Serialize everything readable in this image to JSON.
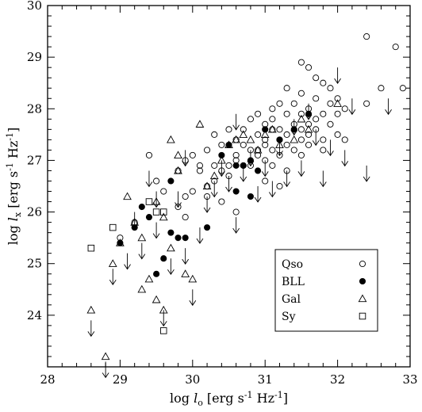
{
  "chart_data": {
    "type": "scatter",
    "xlabel": {
      "prefix": "log ",
      "var": "l",
      "sub": "o",
      "units": " [erg s",
      "exp": "-1",
      "units2": " Hz",
      "exp2": "-1",
      "close": "]"
    },
    "ylabel": {
      "prefix": "log ",
      "var": "l",
      "sub": "x",
      "units": " [erg s",
      "exp": "-1",
      "units2": " Hz",
      "exp2": "-1",
      "close": "]"
    },
    "xlim": [
      28,
      33
    ],
    "ylim": [
      23,
      30
    ],
    "xticks": [
      "28",
      "29",
      "30",
      "31",
      "32",
      "33"
    ],
    "yticks": [
      "24",
      "25",
      "26",
      "27",
      "28",
      "29",
      "30"
    ],
    "grid": false,
    "legend": {
      "placement": "bottom-right",
      "entries": [
        {
          "label": "Qso",
          "marker": "open-circle"
        },
        {
          "label": "BLL",
          "marker": "filled-circle"
        },
        {
          "label": "Gal",
          "marker": "open-triangle"
        },
        {
          "label": "Sy",
          "marker": "open-square"
        }
      ]
    },
    "series": [
      {
        "name": "Qso",
        "marker": "open-circle",
        "points": [
          [
            29.0,
            25.5
          ],
          [
            29.2,
            25.8
          ],
          [
            29.4,
            27.1
          ],
          [
            29.5,
            26.6
          ],
          [
            29.6,
            26.4
          ],
          [
            29.8,
            26.1
          ],
          [
            29.9,
            26.3
          ],
          [
            29.9,
            25.9
          ],
          [
            30.0,
            26.4
          ],
          [
            30.1,
            26.8
          ],
          [
            30.1,
            26.9
          ],
          [
            30.2,
            26.5
          ],
          [
            30.2,
            27.2
          ],
          [
            30.3,
            27.5
          ],
          [
            30.3,
            26.9
          ],
          [
            30.4,
            27.3
          ],
          [
            30.4,
            26.8
          ],
          [
            30.5,
            26.9
          ],
          [
            30.5,
            27.6
          ],
          [
            30.6,
            27.1
          ],
          [
            30.6,
            27.4
          ],
          [
            30.6,
            27.0
          ],
          [
            30.6,
            26.0
          ],
          [
            30.7,
            27.3
          ],
          [
            30.7,
            26.9
          ],
          [
            30.7,
            27.6
          ],
          [
            30.8,
            27.2
          ],
          [
            30.8,
            27.8
          ],
          [
            30.8,
            26.9
          ],
          [
            30.9,
            27.5
          ],
          [
            30.9,
            27.1
          ],
          [
            30.9,
            27.9
          ],
          [
            31.0,
            27.4
          ],
          [
            31.0,
            27.7
          ],
          [
            31.0,
            27.0
          ],
          [
            31.0,
            27.3
          ],
          [
            31.1,
            27.6
          ],
          [
            31.1,
            27.2
          ],
          [
            31.1,
            28.0
          ],
          [
            31.1,
            27.8
          ],
          [
            31.2,
            27.4
          ],
          [
            31.2,
            27.1
          ],
          [
            31.2,
            27.6
          ],
          [
            31.3,
            27.5
          ],
          [
            31.3,
            27.9
          ],
          [
            31.3,
            27.3
          ],
          [
            31.4,
            27.7
          ],
          [
            31.4,
            28.1
          ],
          [
            31.4,
            27.2
          ],
          [
            31.5,
            27.6
          ],
          [
            31.5,
            27.4
          ],
          [
            31.5,
            27.9
          ],
          [
            31.5,
            28.3
          ],
          [
            31.6,
            27.7
          ],
          [
            31.6,
            27.5
          ],
          [
            31.6,
            28.0
          ],
          [
            31.6,
            27.3
          ],
          [
            31.7,
            27.8
          ],
          [
            31.7,
            28.2
          ],
          [
            31.7,
            27.6
          ],
          [
            31.8,
            27.9
          ],
          [
            31.8,
            28.5
          ],
          [
            31.8,
            27.4
          ],
          [
            31.9,
            28.1
          ],
          [
            31.9,
            27.7
          ],
          [
            31.9,
            28.4
          ],
          [
            32.0,
            27.9
          ],
          [
            32.0,
            28.2
          ],
          [
            32.0,
            27.5
          ],
          [
            32.1,
            28.0
          ],
          [
            31.5,
            28.9
          ],
          [
            31.6,
            28.8
          ],
          [
            31.7,
            28.6
          ],
          [
            32.4,
            29.4
          ],
          [
            32.8,
            29.2
          ],
          [
            32.6,
            28.4
          ],
          [
            32.4,
            28.1
          ],
          [
            31.3,
            28.4
          ],
          [
            31.2,
            28.1
          ],
          [
            30.9,
            27.2
          ],
          [
            30.5,
            26.7
          ],
          [
            30.3,
            26.6
          ],
          [
            29.8,
            26.8
          ],
          [
            29.9,
            27.0
          ],
          [
            30.0,
            27.1
          ],
          [
            31.1,
            26.9
          ],
          [
            31.3,
            26.8
          ],
          [
            31.5,
            27.1
          ],
          [
            31.8,
            27.2
          ],
          [
            32.1,
            27.4
          ],
          [
            30.2,
            26.3
          ],
          [
            30.4,
            26.2
          ],
          [
            31.0,
            26.6
          ],
          [
            31.2,
            26.5
          ],
          [
            32.9,
            28.4
          ]
        ]
      },
      {
        "name": "BLL",
        "marker": "filled-circle",
        "points": [
          [
            29.0,
            25.4
          ],
          [
            29.2,
            25.7
          ],
          [
            29.3,
            26.1
          ],
          [
            29.4,
            25.9
          ],
          [
            29.5,
            24.8
          ],
          [
            29.6,
            25.1
          ],
          [
            29.7,
            25.6
          ],
          [
            29.7,
            26.6
          ],
          [
            29.8,
            25.5
          ],
          [
            29.9,
            25.5
          ],
          [
            30.2,
            25.7
          ],
          [
            30.4,
            27.1
          ],
          [
            30.5,
            27.3
          ],
          [
            30.6,
            26.4
          ],
          [
            30.6,
            26.9
          ],
          [
            30.8,
            26.3
          ],
          [
            30.8,
            27.0
          ],
          [
            30.9,
            26.8
          ],
          [
            31.0,
            27.6
          ],
          [
            31.2,
            27.4
          ],
          [
            31.4,
            27.6
          ],
          [
            31.6,
            27.9
          ],
          [
            30.7,
            26.9
          ]
        ]
      },
      {
        "name": "Gal",
        "marker": "open-triangle",
        "points": [
          [
            28.6,
            24.1
          ],
          [
            28.8,
            23.2
          ],
          [
            28.9,
            25.0
          ],
          [
            29.0,
            25.4
          ],
          [
            29.1,
            26.3
          ],
          [
            29.2,
            25.8
          ],
          [
            29.3,
            24.5
          ],
          [
            29.4,
            24.7
          ],
          [
            29.5,
            24.3
          ],
          [
            29.5,
            26.2
          ],
          [
            29.6,
            24.1
          ],
          [
            29.7,
            27.4
          ],
          [
            29.8,
            26.8
          ],
          [
            29.8,
            27.1
          ],
          [
            29.9,
            24.8
          ],
          [
            30.0,
            24.7
          ],
          [
            30.1,
            27.7
          ],
          [
            30.2,
            26.5
          ],
          [
            30.3,
            26.7
          ],
          [
            30.4,
            27.0
          ],
          [
            30.5,
            27.3
          ],
          [
            30.6,
            27.4
          ],
          [
            30.7,
            27.5
          ],
          [
            30.8,
            27.4
          ],
          [
            30.9,
            27.2
          ],
          [
            31.0,
            27.5
          ],
          [
            31.1,
            27.6
          ],
          [
            31.2,
            27.3
          ],
          [
            31.4,
            27.4
          ],
          [
            31.5,
            27.8
          ],
          [
            31.6,
            27.6
          ],
          [
            32.0,
            28.1
          ],
          [
            29.7,
            25.3
          ],
          [
            29.3,
            25.5
          ],
          [
            29.6,
            25.9
          ]
        ]
      },
      {
        "name": "Sy",
        "marker": "open-square",
        "points": [
          [
            28.6,
            25.3
          ],
          [
            28.9,
            25.7
          ],
          [
            29.4,
            26.2
          ],
          [
            29.5,
            26.0
          ],
          [
            29.6,
            23.7
          ],
          [
            29.6,
            26.0
          ]
        ]
      }
    ],
    "upper_limits": {
      "marker": "down-arrow",
      "points": [
        [
          28.6,
          23.9
        ],
        [
          28.8,
          23.1
        ],
        [
          28.9,
          24.9
        ],
        [
          29.1,
          25.2
        ],
        [
          29.2,
          26.0
        ],
        [
          29.3,
          25.4
        ],
        [
          29.4,
          26.8
        ],
        [
          29.5,
          25.8
        ],
        [
          29.6,
          24.1
        ],
        [
          29.7,
          25.1
        ],
        [
          29.8,
          26.4
        ],
        [
          29.9,
          27.2
        ],
        [
          30.0,
          24.5
        ],
        [
          30.1,
          25.7
        ],
        [
          30.2,
          26.3
        ],
        [
          30.3,
          26.6
        ],
        [
          30.4,
          27.0
        ],
        [
          30.5,
          26.7
        ],
        [
          30.6,
          25.9
        ],
        [
          30.7,
          26.9
        ],
        [
          30.8,
          27.2
        ],
        [
          30.9,
          26.5
        ],
        [
          31.0,
          27.0
        ],
        [
          31.1,
          26.6
        ],
        [
          31.2,
          27.4
        ],
        [
          31.3,
          26.8
        ],
        [
          31.4,
          27.8
        ],
        [
          31.5,
          27.0
        ],
        [
          31.6,
          28.1
        ],
        [
          31.7,
          27.6
        ],
        [
          31.8,
          26.8
        ],
        [
          31.9,
          27.4
        ],
        [
          32.0,
          28.8
        ],
        [
          32.1,
          27.2
        ],
        [
          32.2,
          28.2
        ],
        [
          32.4,
          26.9
        ],
        [
          32.7,
          28.2
        ],
        [
          29.9,
          25.3
        ],
        [
          29.5,
          26.4
        ],
        [
          30.6,
          27.9
        ]
      ]
    }
  }
}
